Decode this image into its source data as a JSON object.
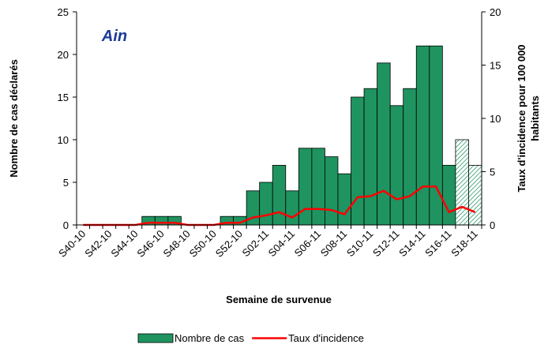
{
  "chart_data": {
    "type": "bar-line",
    "title": "Ain",
    "x_label": "Semaine de survenue",
    "y_label": "Nombre de cas déclarés",
    "y2_label": [
      "Taux d'incidence pour 100 000",
      "habitants"
    ],
    "categories": [
      "S40-10",
      null,
      "S42-10",
      null,
      "S44-10",
      null,
      "S46-10",
      null,
      "S48-10",
      null,
      "S50-10",
      null,
      "S52-10",
      null,
      "S02-11",
      null,
      "S04-11",
      null,
      "S06-11",
      null,
      "S08-11",
      null,
      "S10-11",
      null,
      "S12-11",
      null,
      "S14-11",
      null,
      "S16-11",
      null,
      "S18-11"
    ],
    "series": [
      {
        "name": "Nombre de cas",
        "type": "bar",
        "color": "#1f9460",
        "values": [
          0,
          0,
          0,
          0,
          0,
          1,
          1,
          1,
          0,
          0,
          0,
          1,
          1,
          4,
          5,
          7,
          4,
          9,
          9,
          8,
          6,
          15,
          16,
          19,
          14,
          16,
          21,
          21,
          7,
          10,
          7
        ],
        "hatched": [
          false,
          false,
          false,
          false,
          false,
          false,
          false,
          false,
          false,
          false,
          false,
          false,
          false,
          false,
          false,
          false,
          false,
          false,
          false,
          false,
          false,
          false,
          false,
          false,
          false,
          false,
          false,
          false,
          false,
          true,
          true
        ]
      },
      {
        "name": "Taux d'incidence",
        "type": "line",
        "axis": "y2",
        "color": "#ff0000",
        "values": [
          0,
          0,
          0,
          0,
          0,
          0.2,
          0.2,
          0.2,
          0,
          0,
          0,
          0.2,
          0.2,
          0.7,
          0.9,
          1.2,
          0.7,
          1.5,
          1.5,
          1.4,
          1.0,
          2.6,
          2.7,
          3.2,
          2.4,
          2.7,
          3.6,
          3.6,
          1.2,
          1.7,
          1.2
        ]
      }
    ],
    "ylim": [
      0,
      25
    ],
    "yticks": [
      0,
      5,
      10,
      15,
      20,
      25
    ],
    "y2lim": [
      0,
      20
    ],
    "y2ticks": [
      0,
      5,
      10,
      15,
      20
    ]
  }
}
